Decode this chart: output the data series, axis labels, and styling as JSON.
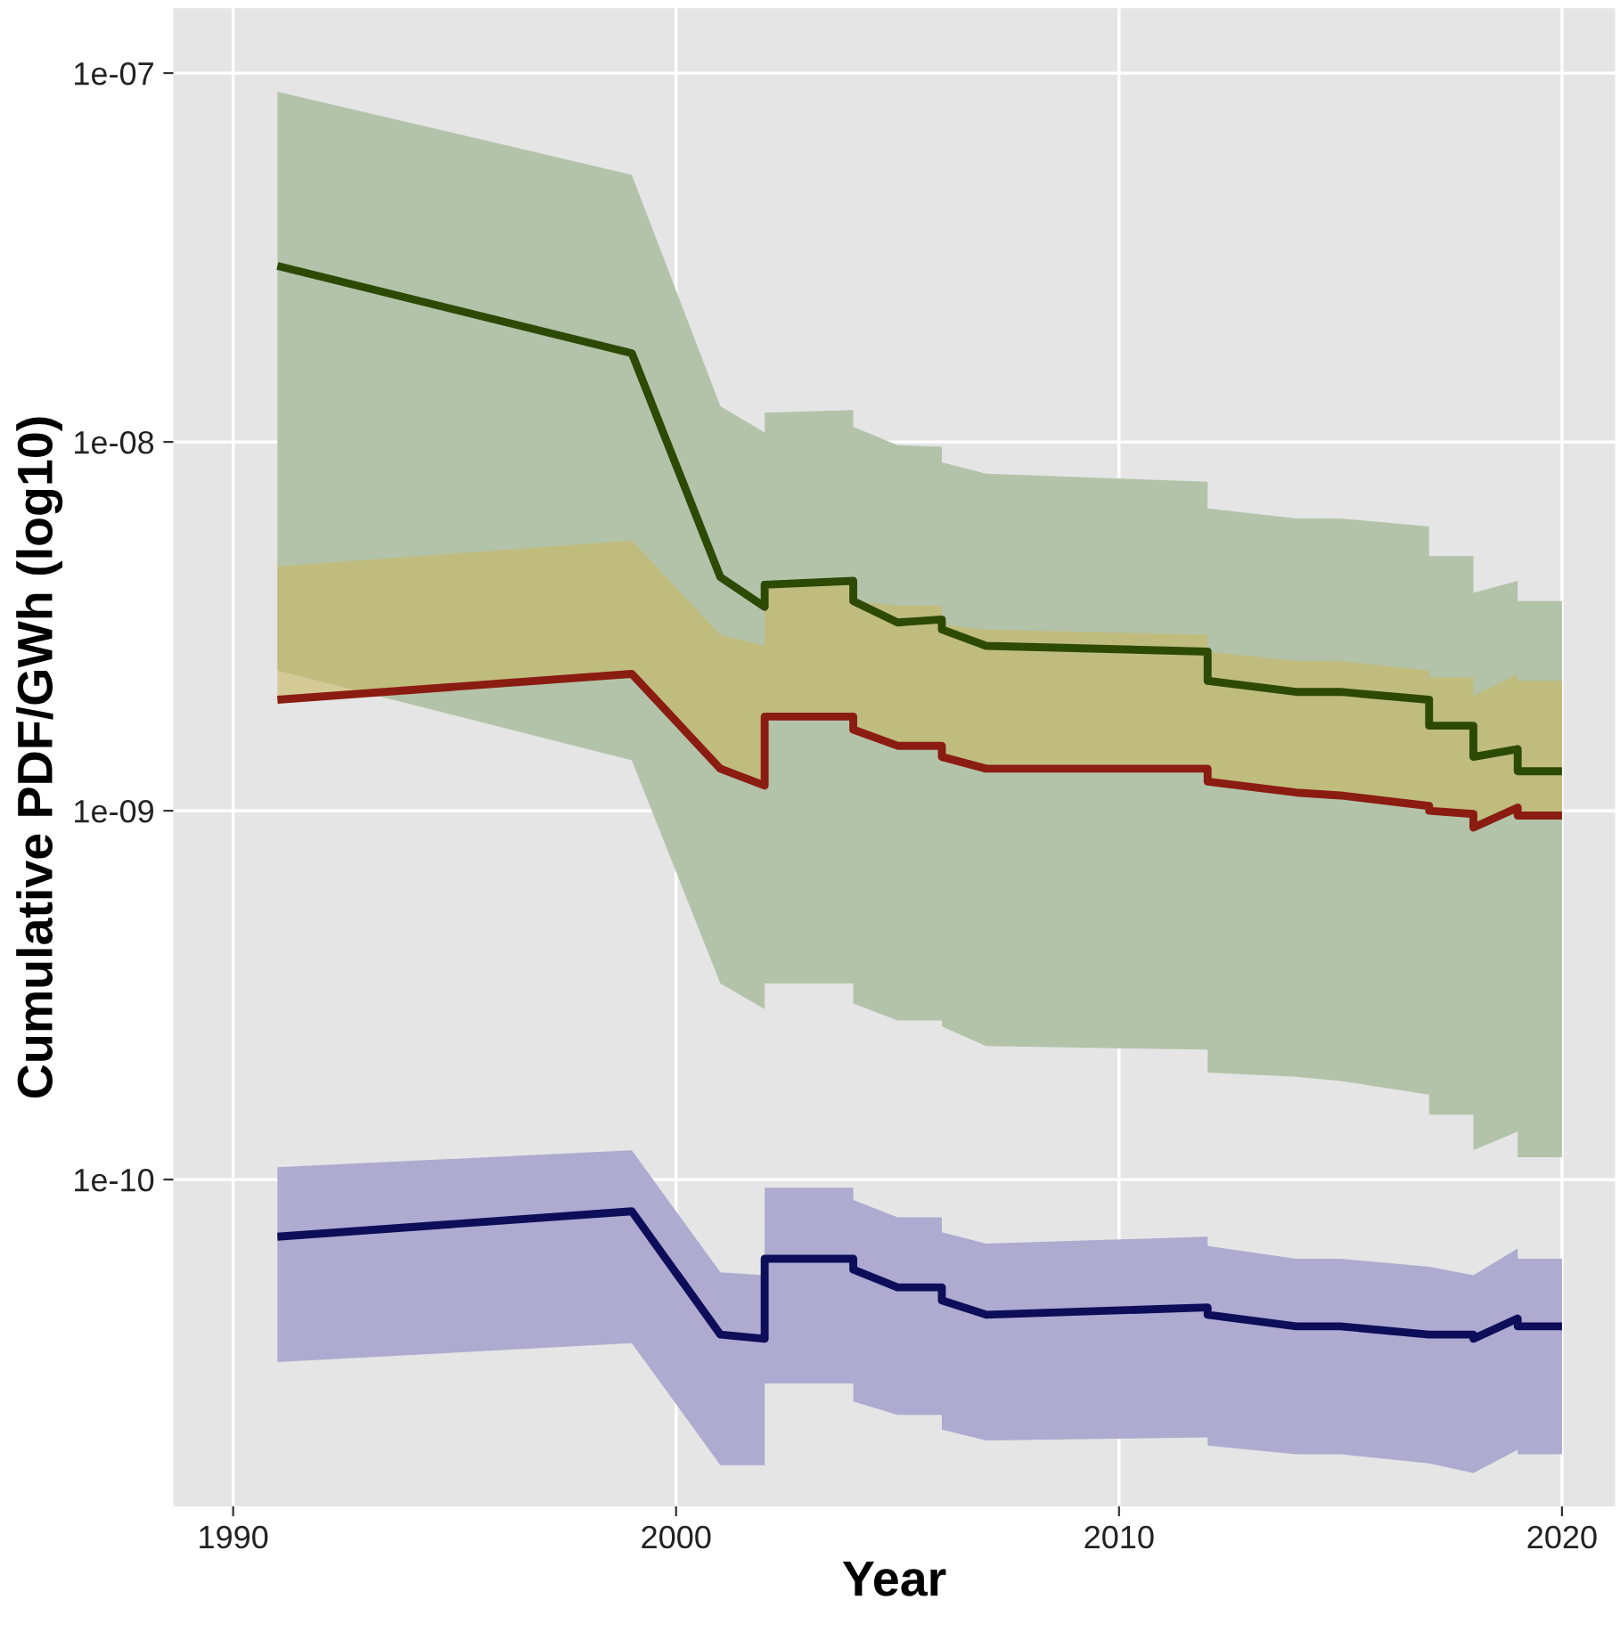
{
  "chart_data": {
    "type": "line",
    "xlabel": "Year",
    "ylabel": "Cumulative PDF/GWh (log10)",
    "log": "y",
    "grid": true,
    "legend": false,
    "line_style": "solid",
    "marker": "none",
    "xlim": [
      1988.65,
      2021.2
    ],
    "ylim": [
      1.3e-11,
      1.5e-07
    ],
    "xticks": [
      1990,
      2000,
      2010,
      2020
    ],
    "yticks": [
      {
        "value": 1e-10,
        "label": "1e-10"
      },
      {
        "value": 1e-09,
        "label": "1e-09"
      },
      {
        "value": 1e-08,
        "label": "1e-08"
      },
      {
        "value": 1e-07,
        "label": "1e-07"
      }
    ],
    "series": [
      {
        "color": "#2d4a05",
        "x": [
          1991,
          1999,
          2001,
          2002,
          2002,
          2004,
          2004,
          2005,
          2006,
          2006,
          2007,
          2012,
          2012,
          2014,
          2015,
          2017,
          2017,
          2018,
          2018,
          2019,
          2019,
          2020
        ],
        "values": [
          3e-08,
          1.74e-08,
          4.3e-09,
          3.57e-09,
          4.1e-09,
          4.2e-09,
          3.7e-09,
          3.24e-09,
          3.3e-09,
          3.1e-09,
          2.8e-09,
          2.7e-09,
          2.25e-09,
          2.1e-09,
          2.1e-09,
          2e-09,
          1.7e-09,
          1.7e-09,
          1.4e-09,
          1.47e-09,
          1.28e-09,
          1.28e-09
        ],
        "upper": [
          8.9e-08,
          5.3e-08,
          1.25e-08,
          1.06e-08,
          1.2e-08,
          1.22e-08,
          1.1e-08,
          9.8e-09,
          9.7e-09,
          8.8e-09,
          8.2e-09,
          7.8e-09,
          6.6e-09,
          6.2e-09,
          6.2e-09,
          5.9e-09,
          4.9e-09,
          4.9e-09,
          3.9e-09,
          4.2e-09,
          3.7e-09,
          3.7e-09
        ],
        "lower": [
          2.4e-09,
          1.37e-09,
          3.4e-10,
          2.9e-10,
          3.4e-10,
          3.4e-10,
          3e-10,
          2.7e-10,
          2.7e-10,
          2.6e-10,
          2.3e-10,
          2.25e-10,
          1.95e-10,
          1.9e-10,
          1.85e-10,
          1.7e-10,
          1.5e-10,
          1.5e-10,
          1.2e-10,
          1.35e-10,
          1.15e-10,
          1.15e-10
        ]
      },
      {
        "color": "#8b1c12",
        "x": [
          1991,
          1999,
          2001,
          2002,
          2002,
          2004,
          2004,
          2005,
          2006,
          2006,
          2007,
          2012,
          2012,
          2014,
          2015,
          2017,
          2017,
          2018,
          2018,
          2019,
          2019,
          2020
        ],
        "values": [
          2e-09,
          2.35e-09,
          1.3e-09,
          1.17e-09,
          1.8e-09,
          1.8e-09,
          1.66e-09,
          1.5e-09,
          1.5e-09,
          1.4e-09,
          1.3e-09,
          1.3e-09,
          1.2e-09,
          1.12e-09,
          1.1e-09,
          1.03e-09,
          1e-09,
          9.8e-10,
          9e-10,
          1.02e-09,
          9.7e-10,
          9.7e-10
        ],
        "upper": [
          4.6e-09,
          5.4e-09,
          3e-09,
          2.8e-09,
          4.2e-09,
          4.2e-09,
          3.7e-09,
          3.6e-09,
          3.6e-09,
          3.2e-09,
          3.1e-09,
          3e-09,
          2.7e-09,
          2.55e-09,
          2.55e-09,
          2.4e-09,
          2.3e-09,
          2.3e-09,
          2.05e-09,
          2.35e-09,
          2.25e-09,
          2.25e-09
        ],
        "lower": [
          2e-09,
          2.35e-09,
          1.3e-09,
          1.17e-09,
          1.8e-09,
          1.8e-09,
          1.66e-09,
          1.5e-09,
          1.5e-09,
          1.4e-09,
          1.3e-09,
          1.3e-09,
          1.2e-09,
          1.12e-09,
          1.1e-09,
          1.03e-09,
          1e-09,
          9.8e-10,
          9e-10,
          1.02e-09,
          9.7e-10,
          9.7e-10
        ]
      },
      {
        "color": "#0d0d5a",
        "x": [
          1991,
          1999,
          2001,
          2002,
          2002,
          2004,
          2004,
          2005,
          2006,
          2006,
          2007,
          2012,
          2012,
          2014,
          2015,
          2017,
          2018,
          2018,
          2019,
          2019,
          2020
        ],
        "values": [
          7e-11,
          8.2e-11,
          3.8e-11,
          3.7e-11,
          6.1e-11,
          6.1e-11,
          5.7e-11,
          5.1e-11,
          5.1e-11,
          4.7e-11,
          4.3e-11,
          4.5e-11,
          4.3e-11,
          4e-11,
          4e-11,
          3.8e-11,
          3.8e-11,
          3.7e-11,
          4.2e-11,
          4e-11,
          4e-11
        ],
        "upper": [
          1.08e-10,
          1.2e-10,
          5.6e-11,
          5.5e-11,
          9.5e-11,
          9.5e-11,
          8.8e-11,
          7.9e-11,
          7.9e-11,
          7.2e-11,
          6.7e-11,
          7e-11,
          6.6e-11,
          6.1e-11,
          6.1e-11,
          5.8e-11,
          5.5e-11,
          5.5e-11,
          6.5e-11,
          6.1e-11,
          6.1e-11
        ],
        "lower": [
          3.2e-11,
          3.6e-11,
          1.68e-11,
          1.68e-11,
          2.8e-11,
          2.8e-11,
          2.5e-11,
          2.3e-11,
          2.3e-11,
          2.1e-11,
          1.96e-11,
          2e-11,
          1.9e-11,
          1.8e-11,
          1.8e-11,
          1.7e-11,
          1.6e-11,
          1.6e-11,
          1.85e-11,
          1.8e-11,
          1.8e-11
        ]
      }
    ]
  }
}
